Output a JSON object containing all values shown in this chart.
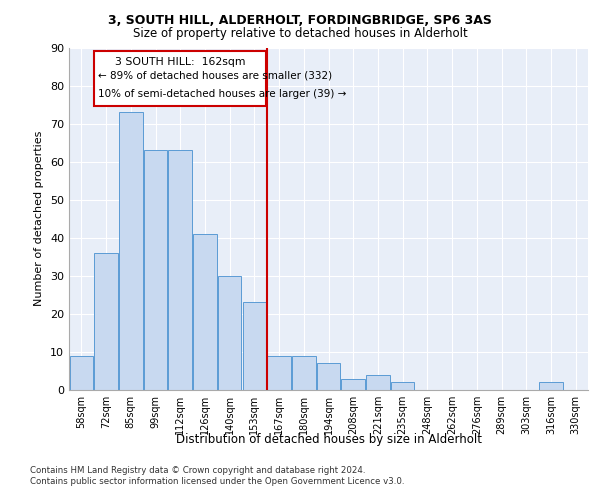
{
  "title1": "3, SOUTH HILL, ALDERHOLT, FORDINGBRIDGE, SP6 3AS",
  "title2": "Size of property relative to detached houses in Alderholt",
  "xlabel": "Distribution of detached houses by size in Alderholt",
  "ylabel": "Number of detached properties",
  "categories": [
    "58sqm",
    "72sqm",
    "85sqm",
    "99sqm",
    "112sqm",
    "126sqm",
    "140sqm",
    "153sqm",
    "167sqm",
    "180sqm",
    "194sqm",
    "208sqm",
    "221sqm",
    "235sqm",
    "248sqm",
    "262sqm",
    "276sqm",
    "289sqm",
    "303sqm",
    "316sqm",
    "330sqm"
  ],
  "values": [
    9,
    36,
    73,
    63,
    63,
    41,
    30,
    23,
    9,
    9,
    7,
    3,
    4,
    2,
    0,
    0,
    0,
    0,
    0,
    2,
    0
  ],
  "bar_color": "#c8d9f0",
  "bar_edge_color": "#5b9bd5",
  "annotation_text_line1": "3 SOUTH HILL:  162sqm",
  "annotation_text_line2": "← 89% of detached houses are smaller (332)",
  "annotation_text_line3": "10% of semi-detached houses are larger (39) →",
  "annotation_box_color": "#ffffff",
  "annotation_box_edge": "#cc0000",
  "vline_color": "#cc0000",
  "background_color": "#e8eef8",
  "grid_color": "#ffffff",
  "footer1": "Contains HM Land Registry data © Crown copyright and database right 2024.",
  "footer2": "Contains public sector information licensed under the Open Government Licence v3.0.",
  "ylim": [
    0,
    90
  ],
  "yticks": [
    0,
    10,
    20,
    30,
    40,
    50,
    60,
    70,
    80,
    90
  ]
}
